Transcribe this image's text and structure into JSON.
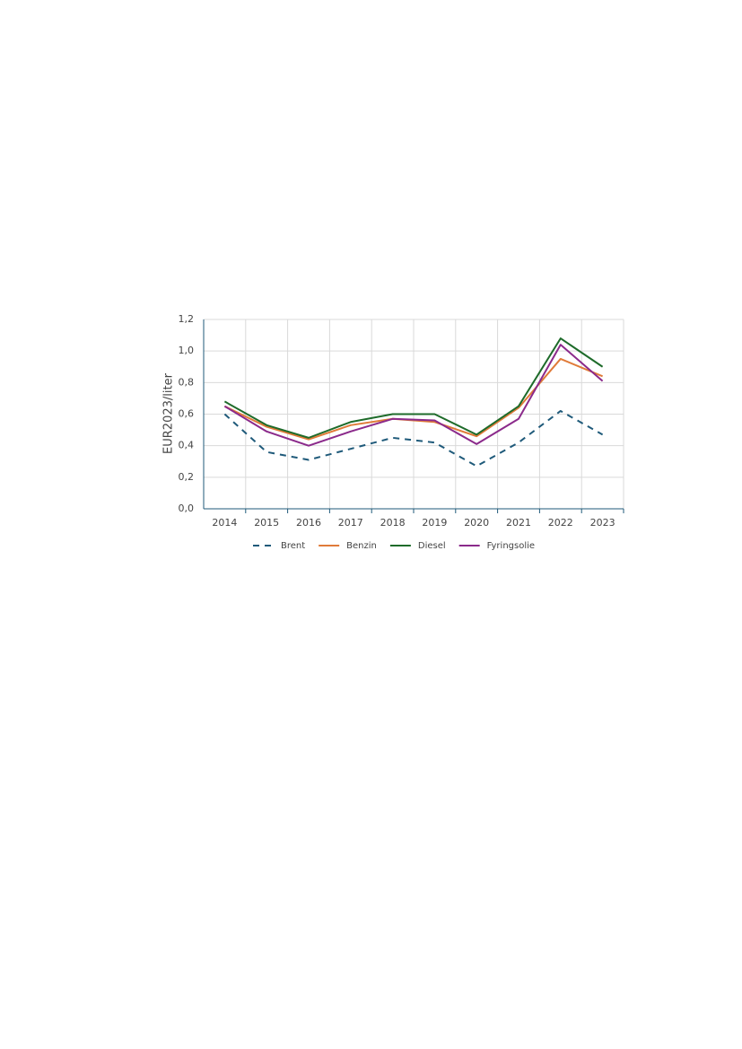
{
  "chart_data": {
    "type": "line",
    "y_label": "EUR2023/liter",
    "categories": [
      "2014",
      "2015",
      "2016",
      "2017",
      "2018",
      "2019",
      "2020",
      "2021",
      "2022",
      "2023"
    ],
    "series": [
      {
        "name": "Brent",
        "color": "#1f5a7a",
        "dashed": true,
        "values": [
          0.6,
          0.36,
          0.31,
          0.38,
          0.45,
          0.42,
          0.27,
          0.42,
          0.62,
          0.47
        ]
      },
      {
        "name": "Benzin",
        "color": "#e07b39",
        "values": [
          0.65,
          0.52,
          0.44,
          0.53,
          0.57,
          0.55,
          0.46,
          0.64,
          0.95,
          0.84
        ]
      },
      {
        "name": "Diesel",
        "color": "#1e6b2a",
        "values": [
          0.68,
          0.53,
          0.45,
          0.55,
          0.6,
          0.6,
          0.47,
          0.65,
          1.08,
          0.9
        ]
      },
      {
        "name": "Fyringsolie",
        "color": "#8b2a8b",
        "values": [
          0.65,
          0.49,
          0.4,
          0.49,
          0.57,
          0.56,
          0.41,
          0.57,
          1.04,
          0.81
        ]
      }
    ],
    "ylim": [
      0,
      1.2
    ],
    "yticks": [
      {
        "value": 0,
        "label": "0,0"
      },
      {
        "value": 0.2,
        "label": "0,2"
      },
      {
        "value": 0.4,
        "label": "0,4"
      },
      {
        "value": 0.6,
        "label": "0,6"
      },
      {
        "value": 0.8,
        "label": "0,8"
      },
      {
        "value": 1.0,
        "label": "1,0"
      },
      {
        "value": 1.2,
        "label": "1,2"
      }
    ],
    "grid": true,
    "legend": "bottom"
  }
}
